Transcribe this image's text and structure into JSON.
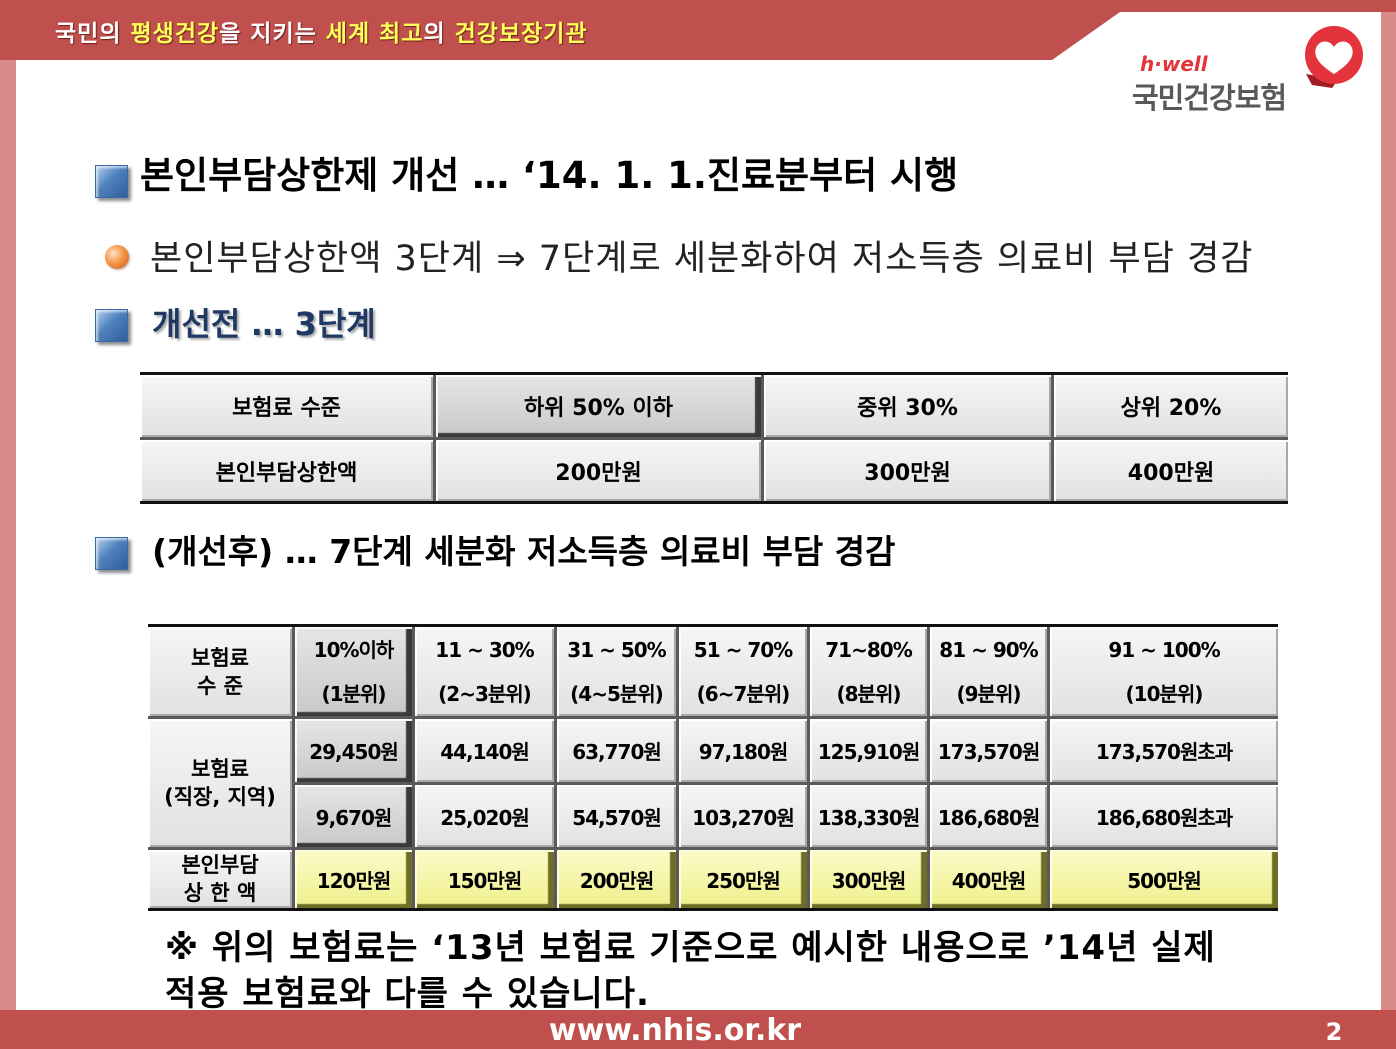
{
  "colors": {
    "banner_red": "#c0504d",
    "frame_pink": "#d98a88",
    "banner_highlight": "#ffff5a",
    "bullet_blue": "#4f81bd",
    "bullet_orange": "#f79646",
    "logo_red": "#e3343c",
    "cap_yellow": "#f0f08c"
  },
  "banner": {
    "segments": [
      {
        "text": "국민의 ",
        "highlight": false
      },
      {
        "text": "평생건강",
        "highlight": true
      },
      {
        "text": "을 지키는 ",
        "highlight": false
      },
      {
        "text": "세계 최고",
        "highlight": true
      },
      {
        "text": "의 ",
        "highlight": false
      },
      {
        "text": "건강보장기관",
        "highlight": true
      }
    ]
  },
  "logo": {
    "brand": "h·well",
    "name": "국민건강보험",
    "icon": "heart-icon"
  },
  "heading": "본인부담상한제 개선 … ‘14. 1. 1.진료분부터 시행",
  "summary": "본인부담상한액 3단계 ⇒ 7단계로 세분화하여 저소득층 의료비 부담 경감",
  "before": {
    "title": "개선전 … 3단계",
    "row_labels": [
      "보험료 수준",
      "본인부담상한액"
    ],
    "columns": [
      {
        "level": "하위 50% 이하",
        "cap": "200만원"
      },
      {
        "level": "중위 30%",
        "cap": "300만원"
      },
      {
        "level": "상위 20%",
        "cap": "400만원"
      }
    ]
  },
  "after": {
    "title": "(개선후) … 7단계 세분화 저소득층 의료비 부담 경감",
    "row_labels": {
      "level": [
        "보험료",
        "수 준"
      ],
      "premium": [
        "보험료",
        "(직장, 지역)"
      ],
      "cap": [
        "본인부담",
        "상 한 액"
      ]
    },
    "columns": [
      {
        "range": "10%이하",
        "decile": "(1분위)",
        "premium_1": "29,450원",
        "premium_2": "9,670원",
        "cap": "120만원"
      },
      {
        "range": "11 ~ 30%",
        "decile": "(2~3분위)",
        "premium_1": "44,140원",
        "premium_2": "25,020원",
        "cap": "150만원"
      },
      {
        "range": "31 ~ 50%",
        "decile": "(4~5분위)",
        "premium_1": "63,770원",
        "premium_2": "54,570원",
        "cap": "200만원"
      },
      {
        "range": "51 ~ 70%",
        "decile": "(6~7분위)",
        "premium_1": "97,180원",
        "premium_2": "103,270원",
        "cap": "250만원"
      },
      {
        "range": "71~80%",
        "decile": "(8분위)",
        "premium_1": "125,910원",
        "premium_2": "138,330원",
        "cap": "300만원"
      },
      {
        "range": "81 ~ 90%",
        "decile": "(9분위)",
        "premium_1": "173,570원",
        "premium_2": "186,680원",
        "cap": "400만원"
      },
      {
        "range": "91 ~ 100%",
        "decile": "(10분위)",
        "premium_1": "173,570원초과",
        "premium_2": "186,680원초과",
        "cap": "500만원"
      }
    ]
  },
  "footnote": [
    "※ 위의 보험료는 ‘13년 보험료 기준으로 예시한 내용으로 ’14년 실제",
    "적용 보험료와 다를 수 있습니다."
  ],
  "footer": {
    "url": "www.nhis.or.kr",
    "page": "2"
  }
}
